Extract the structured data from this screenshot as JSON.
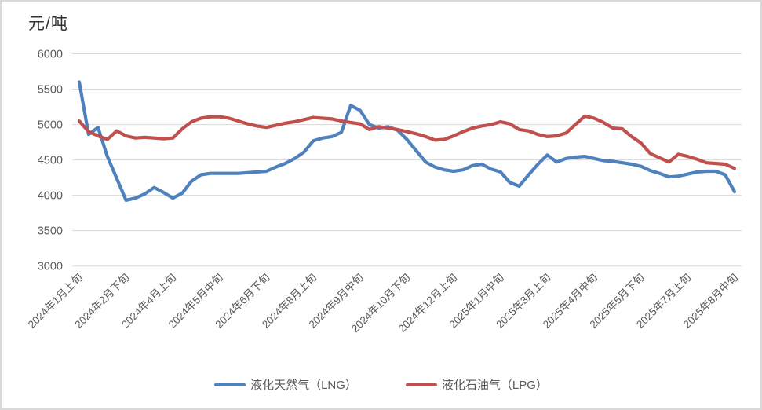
{
  "chart": {
    "unit_label": "元/吨",
    "legend": {
      "lng_label": "液化天然气（LNG）",
      "lpg_label": "液化石油气（LPG）"
    },
    "colors": {
      "lng": "#4F81BD",
      "lpg": "#C0504D",
      "gridline": "#D9D9D9",
      "axis_text": "#595959",
      "frame_border": "#D9D9D9"
    }
  },
  "chart_data": {
    "type": "line",
    "title": "",
    "ylabel": "元/吨",
    "xlabel": "",
    "ylim": [
      3000,
      6000
    ],
    "yticks": [
      6000,
      5500,
      5000,
      4500,
      4000,
      3500,
      3000
    ],
    "grid": "horizontal",
    "legend_position": "bottom",
    "n_points": 71,
    "x_tick_labels": [
      {
        "index": 0,
        "label": "2024年1月上旬"
      },
      {
        "index": 5,
        "label": "2024年2月下旬"
      },
      {
        "index": 10,
        "label": "2024年4月上旬"
      },
      {
        "index": 15,
        "label": "2024年5月中旬"
      },
      {
        "index": 20,
        "label": "2024年6月下旬"
      },
      {
        "index": 25,
        "label": "2024年8月上旬"
      },
      {
        "index": 30,
        "label": "2024年9月中旬"
      },
      {
        "index": 35,
        "label": "2024年10月下旬"
      },
      {
        "index": 40,
        "label": "2024年12月上旬"
      },
      {
        "index": 45,
        "label": "2025年1月中旬"
      },
      {
        "index": 50,
        "label": "2025年3月上旬"
      },
      {
        "index": 55,
        "label": "2025年4月中旬"
      },
      {
        "index": 60,
        "label": "2025年5月下旬"
      },
      {
        "index": 65,
        "label": "2025年7月上旬"
      },
      {
        "index": 70,
        "label": "2025年8月中旬"
      }
    ],
    "series": [
      {
        "name": "液化天然气（LNG）",
        "color": "#4F81BD",
        "values": [
          5600,
          4860,
          4960,
          4550,
          4240,
          3930,
          3960,
          4020,
          4110,
          4040,
          3960,
          4030,
          4200,
          4290,
          4310,
          4310,
          4310,
          4310,
          4320,
          4330,
          4340,
          4400,
          4450,
          4520,
          4610,
          4770,
          4810,
          4830,
          4890,
          5270,
          5200,
          5000,
          4950,
          4970,
          4920,
          4790,
          4630,
          4470,
          4400,
          4360,
          4340,
          4360,
          4420,
          4440,
          4370,
          4330,
          4180,
          4130,
          4290,
          4440,
          4570,
          4470,
          4520,
          4540,
          4550,
          4520,
          4490,
          4480,
          4460,
          4440,
          4410,
          4350,
          4310,
          4260,
          4270,
          4300,
          4330,
          4340,
          4340,
          4290,
          4050
        ]
      },
      {
        "name": "液化石油气（LPG）",
        "color": "#C0504D",
        "values": [
          5050,
          4900,
          4840,
          4790,
          4910,
          4840,
          4810,
          4820,
          4810,
          4800,
          4810,
          4940,
          5040,
          5090,
          5110,
          5110,
          5090,
          5050,
          5010,
          4980,
          4960,
          4990,
          5020,
          5040,
          5070,
          5100,
          5090,
          5080,
          5050,
          5030,
          5010,
          4930,
          4970,
          4950,
          4930,
          4900,
          4870,
          4830,
          4780,
          4790,
          4840,
          4900,
          4950,
          4980,
          5000,
          5040,
          5010,
          4930,
          4910,
          4860,
          4830,
          4840,
          4880,
          5000,
          5120,
          5090,
          5030,
          4950,
          4940,
          4830,
          4740,
          4590,
          4530,
          4470,
          4580,
          4550,
          4510,
          4460,
          4450,
          4440,
          4380
        ]
      }
    ]
  }
}
